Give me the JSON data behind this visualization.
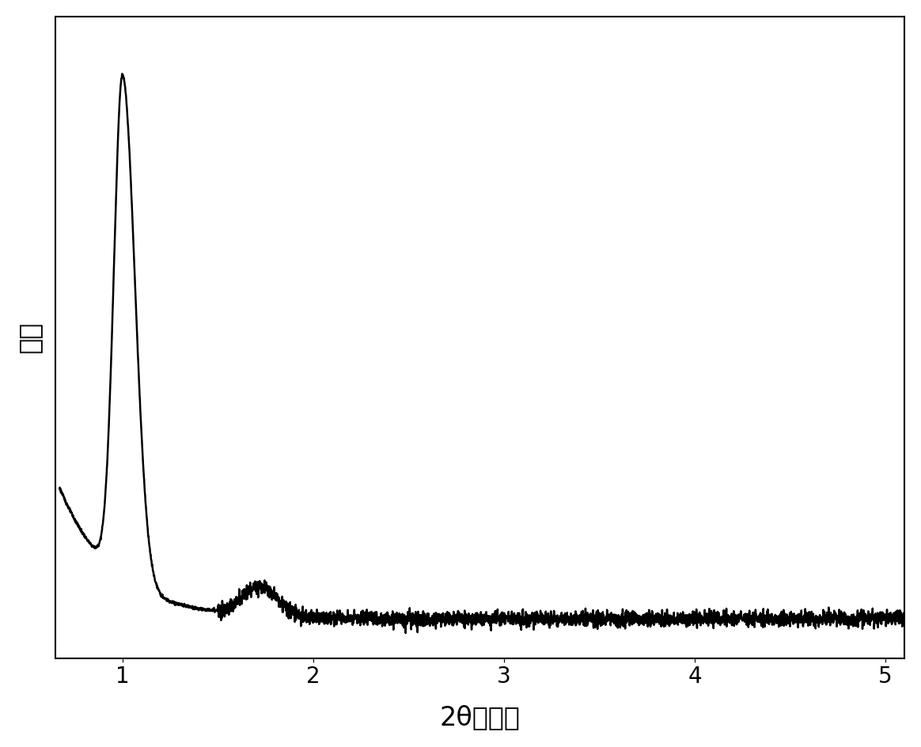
{
  "xlabel": "2θ（度）",
  "ylabel": "强度",
  "xlim": [
    0.65,
    5.1
  ],
  "xticks": [
    1,
    2,
    3,
    4,
    5
  ],
  "line_color": "#000000",
  "line_width": 1.8,
  "background_color": "#ffffff",
  "xlabel_fontsize": 24,
  "ylabel_fontsize": 24,
  "tick_fontsize": 20,
  "figsize": [
    11.64,
    9.44
  ],
  "dpi": 100
}
